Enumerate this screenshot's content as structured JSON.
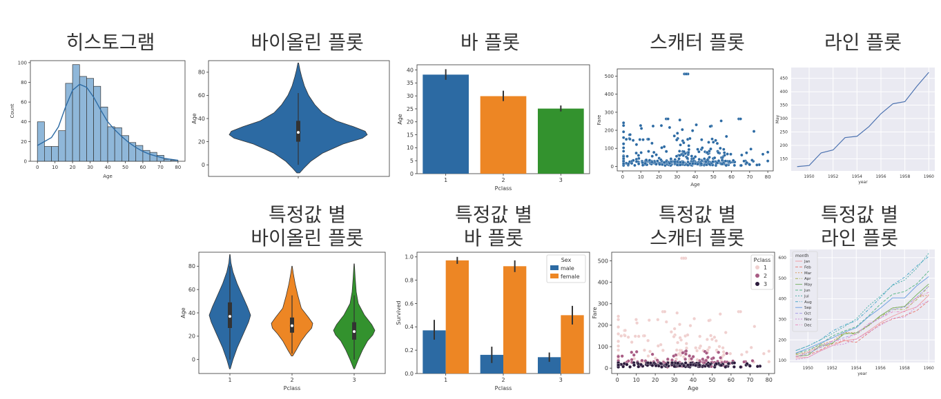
{
  "titles": {
    "hist": "히스토그램",
    "violin": "바이올린 플롯",
    "bar": "바 플롯",
    "scatter": "스캐터 플롯",
    "line": "라인 플롯",
    "violin2_l1": "특정값 별",
    "violin2_l2": "바이올린 플롯",
    "bar2_l1": "특정값 별",
    "bar2_l2": "바 플롯",
    "scatter2_l1": "특정값 별",
    "scatter2_l2": "스캐터 플롯",
    "line2_l1": "특정값 별",
    "line2_l2": "라인 플롯"
  },
  "chart_data": [
    {
      "id": "hist",
      "type": "bar",
      "xlabel": "Age",
      "ylabel": "Count",
      "bins": [
        [
          0,
          4,
          40
        ],
        [
          4,
          8,
          15
        ],
        [
          8,
          12,
          15
        ],
        [
          12,
          16,
          31
        ],
        [
          16,
          20,
          79
        ],
        [
          20,
          24,
          98
        ],
        [
          24,
          28,
          86
        ],
        [
          28,
          32,
          84
        ],
        [
          32,
          36,
          76
        ],
        [
          36,
          40,
          55
        ],
        [
          40,
          44,
          35
        ],
        [
          44,
          48,
          34
        ],
        [
          48,
          52,
          26
        ],
        [
          52,
          56,
          19
        ],
        [
          56,
          60,
          16
        ],
        [
          60,
          64,
          11
        ],
        [
          64,
          68,
          9
        ],
        [
          68,
          72,
          6
        ],
        [
          72,
          76,
          2
        ],
        [
          76,
          80,
          1
        ]
      ],
      "kde": [
        [
          0,
          16
        ],
        [
          4,
          20
        ],
        [
          8,
          24
        ],
        [
          12,
          35
        ],
        [
          16,
          55
        ],
        [
          20,
          72
        ],
        [
          24,
          78
        ],
        [
          28,
          75
        ],
        [
          32,
          65
        ],
        [
          36,
          52
        ],
        [
          40,
          40
        ],
        [
          44,
          32
        ],
        [
          48,
          25
        ],
        [
          52,
          19
        ],
        [
          56,
          14
        ],
        [
          60,
          10
        ],
        [
          64,
          7
        ],
        [
          68,
          5
        ],
        [
          72,
          3
        ],
        [
          76,
          2
        ],
        [
          80,
          1
        ]
      ],
      "xlim": [
        -4,
        84
      ],
      "ylim": [
        0,
        102
      ],
      "xticks": [
        0,
        10,
        20,
        30,
        40,
        50,
        60,
        70,
        80
      ],
      "yticks": [
        0,
        20,
        40,
        60,
        80,
        100
      ]
    },
    {
      "id": "violin",
      "type": "violin",
      "ylabel": "Age",
      "ylim": [
        -10,
        90
      ],
      "yticks": [
        0,
        20,
        40,
        60,
        80
      ],
      "profile": [
        [
          -7,
          0.02
        ],
        [
          -3,
          0.08
        ],
        [
          3,
          0.18
        ],
        [
          10,
          0.35
        ],
        [
          18,
          0.65
        ],
        [
          23,
          0.93
        ],
        [
          26,
          1.0
        ],
        [
          29,
          0.97
        ],
        [
          33,
          0.8
        ],
        [
          38,
          0.55
        ],
        [
          45,
          0.35
        ],
        [
          52,
          0.24
        ],
        [
          60,
          0.15
        ],
        [
          68,
          0.09
        ],
        [
          76,
          0.05
        ],
        [
          82,
          0.025
        ],
        [
          88,
          0.005
        ]
      ],
      "q1": 20,
      "median": 28,
      "q3": 38,
      "whisker": [
        0,
        62
      ]
    },
    {
      "id": "bar",
      "type": "bar",
      "xlabel": "Pclass",
      "ylabel": "Age",
      "categories": [
        "1",
        "2",
        "3"
      ],
      "values": [
        38.2,
        29.9,
        25.1
      ],
      "err": [
        [
          36.2,
          40.3
        ],
        [
          28.0,
          32.0
        ],
        [
          24.0,
          26.3
        ]
      ],
      "colors": [
        "#2c6aa3",
        "#ed8624",
        "#33922e"
      ],
      "ylim": [
        0,
        42
      ],
      "yticks": [
        0,
        5,
        10,
        15,
        20,
        25,
        30,
        35,
        40
      ]
    },
    {
      "id": "scatter",
      "type": "scatter",
      "xlabel": "Age",
      "ylabel": "Fare",
      "xlim": [
        -3,
        83
      ],
      "ylim": [
        -25,
        540
      ],
      "xticks": [
        0,
        10,
        20,
        30,
        40,
        50,
        60,
        70,
        80
      ],
      "yticks": [
        0,
        100,
        200,
        300,
        400,
        500
      ]
    },
    {
      "id": "line",
      "type": "line",
      "xlabel": "year",
      "ylabel": "May",
      "x": [
        1949,
        1950,
        1951,
        1952,
        1953,
        1954,
        1955,
        1956,
        1957,
        1958,
        1959,
        1960
      ],
      "y": [
        121,
        125,
        172,
        183,
        229,
        234,
        270,
        318,
        355,
        363,
        420,
        472
      ],
      "xticks": [
        1950,
        1952,
        1954,
        1956,
        1958,
        1960
      ],
      "yticks": [
        150,
        200,
        250,
        300,
        350,
        400,
        450
      ],
      "xlim": [
        1948.5,
        1960.5
      ],
      "ylim": [
        105,
        490
      ]
    },
    {
      "id": "violin2",
      "type": "violin",
      "xlabel": "Pclass",
      "ylabel": "Age",
      "categories": [
        "1",
        "2",
        "3"
      ],
      "colors": [
        "#2c6aa3",
        "#ed8624",
        "#33922e"
      ],
      "ylim": [
        -12,
        92
      ],
      "yticks": [
        0,
        20,
        40,
        60,
        80
      ],
      "q1": [
        27,
        23,
        17
      ],
      "median": [
        37,
        29,
        24
      ],
      "q3": [
        49,
        36,
        32
      ],
      "whisker": [
        [
          0,
          80
        ],
        [
          5,
          55
        ],
        [
          0,
          55
        ]
      ]
    },
    {
      "id": "bar2",
      "type": "bar",
      "xlabel": "Pclass",
      "ylabel": "Survived",
      "categories": [
        "1",
        "2",
        "3"
      ],
      "series": [
        {
          "name": "male",
          "values": [
            0.37,
            0.16,
            0.14
          ],
          "color": "#2c6aa3",
          "err": [
            [
              0.29,
              0.46
            ],
            [
              0.09,
              0.23
            ],
            [
              0.1,
              0.18
            ]
          ]
        },
        {
          "name": "female",
          "values": [
            0.97,
            0.92,
            0.5
          ],
          "color": "#ed8624",
          "err": [
            [
              0.94,
              1.0
            ],
            [
              0.87,
              0.97
            ],
            [
              0.42,
              0.58
            ]
          ]
        }
      ],
      "legend_title": "Sex",
      "legend": "top-right",
      "ylim": [
        0,
        1.04
      ],
      "yticks": [
        0.0,
        0.2,
        0.4,
        0.6,
        0.8,
        1.0
      ]
    },
    {
      "id": "scatter2",
      "type": "scatter",
      "xlabel": "Age",
      "ylabel": "Fare",
      "legend_title": "Pclass",
      "legend": "top-right",
      "series": [
        {
          "name": "1",
          "color": "#f0d0cf"
        },
        {
          "name": "2",
          "color": "#a85c84"
        },
        {
          "name": "3",
          "color": "#2b1a3c"
        }
      ],
      "xlim": [
        -3,
        83
      ],
      "ylim": [
        -25,
        540
      ],
      "xticks": [
        0,
        10,
        20,
        30,
        40,
        50,
        60,
        70,
        80
      ],
      "yticks": [
        0,
        100,
        200,
        300,
        400,
        500
      ]
    },
    {
      "id": "line2",
      "type": "line",
      "xlabel": "year",
      "legend_title": "month",
      "legend": "top-left",
      "x": [
        1949,
        1950,
        1951,
        1952,
        1953,
        1954,
        1955,
        1956,
        1957,
        1958,
        1959,
        1960
      ],
      "series": [
        {
          "name": "Jan",
          "values": [
            112,
            115,
            145,
            171,
            196,
            204,
            242,
            284,
            315,
            340,
            360,
            417
          ]
        },
        {
          "name": "Feb",
          "values": [
            118,
            126,
            150,
            180,
            196,
            188,
            233,
            277,
            301,
            318,
            342,
            391
          ]
        },
        {
          "name": "Mar",
          "values": [
            132,
            141,
            178,
            193,
            236,
            235,
            267,
            317,
            356,
            362,
            406,
            419
          ]
        },
        {
          "name": "Apr",
          "values": [
            129,
            135,
            163,
            181,
            235,
            227,
            269,
            313,
            348,
            348,
            396,
            461
          ]
        },
        {
          "name": "May",
          "values": [
            121,
            125,
            172,
            183,
            229,
            234,
            270,
            318,
            355,
            363,
            420,
            472
          ]
        },
        {
          "name": "Jun",
          "values": [
            135,
            149,
            178,
            218,
            243,
            264,
            315,
            374,
            422,
            435,
            472,
            535
          ]
        },
        {
          "name": "Jul",
          "values": [
            148,
            170,
            199,
            230,
            264,
            302,
            364,
            413,
            465,
            491,
            548,
            622
          ]
        },
        {
          "name": "Aug",
          "values": [
            148,
            170,
            199,
            242,
            272,
            293,
            347,
            405,
            467,
            505,
            559,
            606
          ]
        },
        {
          "name": "Sep",
          "values": [
            136,
            158,
            184,
            209,
            237,
            259,
            312,
            355,
            404,
            404,
            463,
            508
          ]
        },
        {
          "name": "Oct",
          "values": [
            119,
            133,
            162,
            191,
            211,
            229,
            274,
            306,
            347,
            359,
            407,
            461
          ]
        },
        {
          "name": "Nov",
          "values": [
            104,
            114,
            146,
            172,
            180,
            203,
            237,
            271,
            305,
            310,
            362,
            390
          ]
        },
        {
          "name": "Dec",
          "values": [
            118,
            140,
            166,
            194,
            201,
            229,
            278,
            306,
            336,
            337,
            405,
            432
          ]
        }
      ],
      "xticks": [
        1950,
        1952,
        1954,
        1956,
        1958,
        1960
      ],
      "yticks": [
        100,
        200,
        300,
        400,
        500,
        600
      ],
      "xlim": [
        1948.5,
        1960.5
      ],
      "ylim": [
        90,
        640
      ]
    }
  ]
}
